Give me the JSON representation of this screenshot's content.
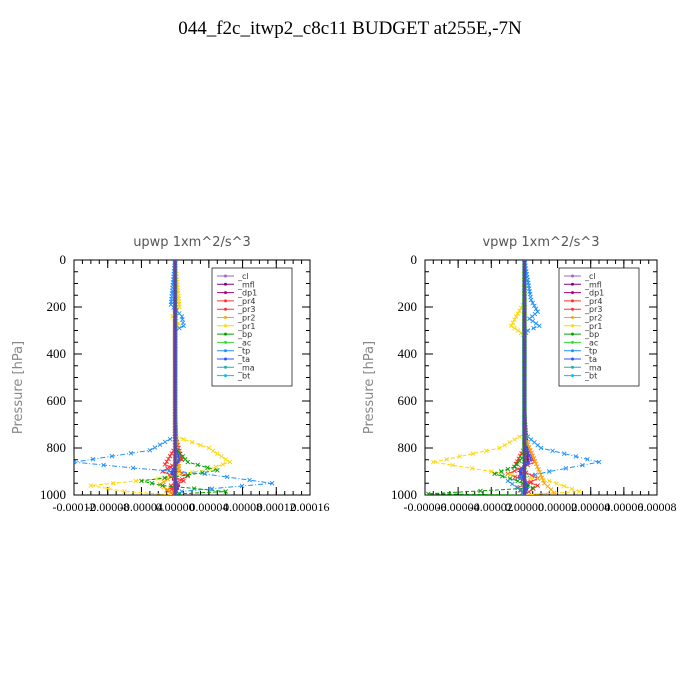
{
  "title": "044_f2c_itwp2_c8c11  BUDGET at255E,-7N",
  "chart_data": [
    {
      "type": "line",
      "title": "upwp    1xm^2/s^3",
      "ylabel": "Pressure [hPa]",
      "ylim": [
        1000,
        0
      ],
      "yticks": [
        0,
        200,
        400,
        600,
        800,
        1000
      ],
      "xlim": [
        -0.00012,
        0.00016
      ],
      "xtick_labels": [
        "-0.00012",
        "-0.00008",
        "-0.00004",
        "0.00000",
        "0.00004",
        "0.00008",
        "0.00012",
        "0.00016"
      ],
      "xtick_values": [
        -0.00012,
        -8e-05,
        -4e-05,
        0.0,
        4e-05,
        8e-05,
        0.00012,
        0.00016
      ],
      "legend_position": "top-right",
      "series": [
        {
          "name": "_cl",
          "color": "#9966cc",
          "x": [
            0,
            0,
            0,
            0,
            0,
            0
          ],
          "y": [
            0,
            200,
            400,
            600,
            800,
            1000
          ]
        },
        {
          "name": "_mfl",
          "color": "#800080",
          "x": [
            0,
            0,
            0,
            0,
            0,
            0
          ],
          "y": [
            0,
            200,
            400,
            600,
            800,
            1000
          ]
        },
        {
          "name": "_dp1",
          "color": "#b0007a",
          "x": [
            0,
            0,
            3e-06,
            -5e-06,
            4e-06,
            0
          ],
          "y": [
            0,
            600,
            860,
            920,
            960,
            1000
          ]
        },
        {
          "name": "_pr4",
          "color": "#ff3030",
          "x": [
            0,
            0,
            8e-06,
            -1.5e-05,
            1e-05,
            -1e-05,
            0
          ],
          "y": [
            0,
            750,
            850,
            900,
            940,
            980,
            1000
          ]
        },
        {
          "name": "_pr3",
          "color": "#ff3030",
          "x": [
            0,
            0,
            -1.2e-05,
            1.5e-05,
            -5e-06,
            0
          ],
          "y": [
            0,
            800,
            870,
            920,
            960,
            1000
          ]
        },
        {
          "name": "_pr2",
          "color": "#ffa500",
          "x": [
            0,
            0,
            5e-06,
            -1.8e-05,
            0
          ],
          "y": [
            0,
            700,
            900,
            955,
            1000
          ]
        },
        {
          "name": "_pr1",
          "color": "#ffd700",
          "x": [
            0,
            5e-06,
            -3e-06,
            4e-06,
            0,
            0,
            4e-05,
            6.5e-05,
            4e-05,
            -2e-05,
            -0.0001,
            -6e-05,
            0
          ],
          "y": [
            0,
            200,
            240,
            270,
            300,
            750,
            800,
            860,
            890,
            930,
            960,
            985,
            1000
          ]
        },
        {
          "name": "_bp",
          "color": "#00a000",
          "x": [
            0,
            0,
            1.5e-05,
            5e-05,
            1.5e-05,
            -4e-05,
            -1.5e-05,
            6e-05,
            5e-06,
            0
          ],
          "y": [
            0,
            800,
            860,
            895,
            915,
            940,
            960,
            985,
            995,
            1000
          ]
        },
        {
          "name": "_ac",
          "color": "#33dd33",
          "x": [
            0,
            0,
            0,
            0,
            0,
            0
          ],
          "y": [
            0,
            200,
            400,
            600,
            800,
            1000
          ]
        },
        {
          "name": "_tp",
          "color": "#1e90ff",
          "x": [
            0,
            -5e-06,
            8e-06,
            1e-05,
            0,
            0,
            -3e-05,
            -0.00012,
            -5e-05,
            3.5e-05,
            0.000115,
            8e-06,
            0
          ],
          "y": [
            0,
            190,
            240,
            280,
            300,
            750,
            810,
            860,
            885,
            910,
            950,
            985,
            1000
          ]
        },
        {
          "name": "_ta",
          "color": "#3050ff",
          "x": [
            0,
            0,
            5e-06,
            -4e-06,
            3e-06,
            0
          ],
          "y": [
            0,
            780,
            850,
            900,
            960,
            1000
          ]
        },
        {
          "name": "_ma",
          "color": "#20b2aa",
          "x": [
            0,
            0,
            0,
            0,
            0,
            0
          ],
          "y": [
            0,
            200,
            400,
            600,
            800,
            1000
          ]
        },
        {
          "name": "_bt",
          "color": "#00bfff",
          "x": [
            0,
            0,
            0,
            0,
            0,
            0
          ],
          "y": [
            0,
            200,
            400,
            600,
            800,
            1000
          ]
        }
      ]
    },
    {
      "type": "line",
      "title": "vpwp    1xm^2/s^3",
      "ylabel": "Pressure [hPa]",
      "ylim": [
        1000,
        0
      ],
      "yticks": [
        0,
        200,
        400,
        600,
        800,
        1000
      ],
      "xlim": [
        -6e-05,
        8e-05
      ],
      "xtick_labels": [
        "-0.00006",
        "-0.00004",
        "-0.00002",
        "0.00000",
        "0.00002",
        "0.00004",
        "0.00006",
        "0.00008"
      ],
      "xtick_values": [
        -6e-05,
        -4e-05,
        -2e-05,
        0.0,
        2e-05,
        4e-05,
        6e-05,
        8e-05
      ],
      "legend_position": "top-right",
      "series": [
        {
          "name": "_cl",
          "color": "#9966cc",
          "x": [
            0,
            0,
            0,
            0,
            0,
            0
          ],
          "y": [
            0,
            200,
            400,
            600,
            800,
            1000
          ]
        },
        {
          "name": "_mfl",
          "color": "#800080",
          "x": [
            0,
            0,
            0,
            0,
            0,
            0
          ],
          "y": [
            0,
            200,
            400,
            600,
            800,
            1000
          ]
        },
        {
          "name": "_dp1",
          "color": "#b0007a",
          "x": [
            0,
            0,
            2e-06,
            -3e-06,
            2e-06,
            0
          ],
          "y": [
            0,
            600,
            860,
            920,
            960,
            1000
          ]
        },
        {
          "name": "_pr4",
          "color": "#ff3030",
          "x": [
            0,
            0,
            6e-06,
            -1e-05,
            8e-06,
            0
          ],
          "y": [
            0,
            750,
            860,
            910,
            960,
            1000
          ]
        },
        {
          "name": "_pr3",
          "color": "#ff3030",
          "x": [
            0,
            0,
            -6e-06,
            8e-06,
            -4e-06,
            0
          ],
          "y": [
            0,
            800,
            880,
            930,
            970,
            1000
          ]
        },
        {
          "name": "_pr2",
          "color": "#ffa500",
          "x": [
            0,
            0,
            1.2e-05,
            1.8e-05,
            0
          ],
          "y": [
            0,
            750,
            950,
            990,
            1000
          ]
        },
        {
          "name": "_pr1",
          "color": "#ffd700",
          "x": [
            0,
            0,
            -5e-06,
            -8e-06,
            -2e-06,
            0,
            0,
            -1.5e-05,
            -5.5e-05,
            -2e-05,
            1.5e-05,
            3.3e-05,
            0
          ],
          "y": [
            0,
            180,
            240,
            280,
            310,
            330,
            740,
            800,
            860,
            900,
            940,
            985,
            1000
          ]
        },
        {
          "name": "_bp",
          "color": "#00a000",
          "x": [
            0,
            0,
            -6e-06,
            -1.8e-05,
            -4e-06,
            5e-06,
            -5.8e-05,
            0
          ],
          "y": [
            0,
            830,
            880,
            910,
            940,
            970,
            995,
            1000
          ]
        },
        {
          "name": "_ac",
          "color": "#33dd33",
          "x": [
            0,
            0,
            0,
            0,
            0,
            0
          ],
          "y": [
            0,
            200,
            400,
            600,
            800,
            1000
          ]
        },
        {
          "name": "_tp",
          "color": "#1e90ff",
          "x": [
            0,
            4e-06,
            8e-06,
            3e-06,
            9e-06,
            2e-06,
            0,
            0,
            1e-05,
            4.5e-05,
            1.5e-05,
            -1e-05,
            -2e-06,
            0
          ],
          "y": [
            0,
            170,
            220,
            250,
            280,
            300,
            320,
            740,
            800,
            860,
            900,
            940,
            980,
            1000
          ]
        },
        {
          "name": "_ta",
          "color": "#3050ff",
          "x": [
            0,
            0,
            4e-06,
            -3e-06,
            2e-06,
            0
          ],
          "y": [
            0,
            780,
            850,
            900,
            960,
            1000
          ]
        },
        {
          "name": "_ma",
          "color": "#20b2aa",
          "x": [
            0,
            0,
            0,
            0,
            0,
            0
          ],
          "y": [
            0,
            200,
            400,
            600,
            800,
            1000
          ]
        },
        {
          "name": "_bt",
          "color": "#00bfff",
          "x": [
            0,
            0,
            0,
            0,
            0,
            0
          ],
          "y": [
            0,
            200,
            400,
            600,
            800,
            1000
          ]
        }
      ]
    }
  ]
}
